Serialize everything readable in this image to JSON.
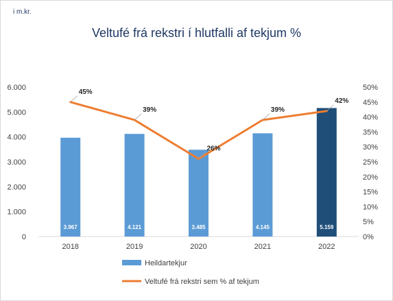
{
  "unit_label": "i m.kr.",
  "chart_data": {
    "type": "bar+line",
    "title": "Veltufé frá rekstri í hlutfalli af tekjum %",
    "categories": [
      "2018",
      "2019",
      "2020",
      "2021",
      "2022"
    ],
    "bar_series": {
      "name": "Heildartekjur",
      "values": [
        3967,
        4121,
        3485,
        4145,
        5159
      ],
      "value_labels": [
        "3.967",
        "4.121",
        "3.485",
        "4.145",
        "5.159"
      ],
      "color": "#5b9bd5",
      "highlight_color": "#1f4e79",
      "highlight_index": 4
    },
    "line_series": {
      "name": "Veltufé frá rekstri sem % af tekjum",
      "values": [
        45,
        39,
        26,
        39,
        42
      ],
      "value_labels": [
        "45%",
        "39%",
        "26%",
        "39%",
        "42%"
      ],
      "color": "#ed7d31"
    },
    "y_left": {
      "min": 0,
      "max": 6000,
      "ticks": [
        "0",
        "1.000",
        "2.000",
        "3.000",
        "4.000",
        "5.000",
        "6.000"
      ]
    },
    "y_right": {
      "min": 0,
      "max": 50,
      "ticks": [
        "0%",
        "5%",
        "10%",
        "15%",
        "20%",
        "25%",
        "30%",
        "35%",
        "40%",
        "45%",
        "50%"
      ]
    },
    "grid": false,
    "legend_position": "bottom-left"
  }
}
